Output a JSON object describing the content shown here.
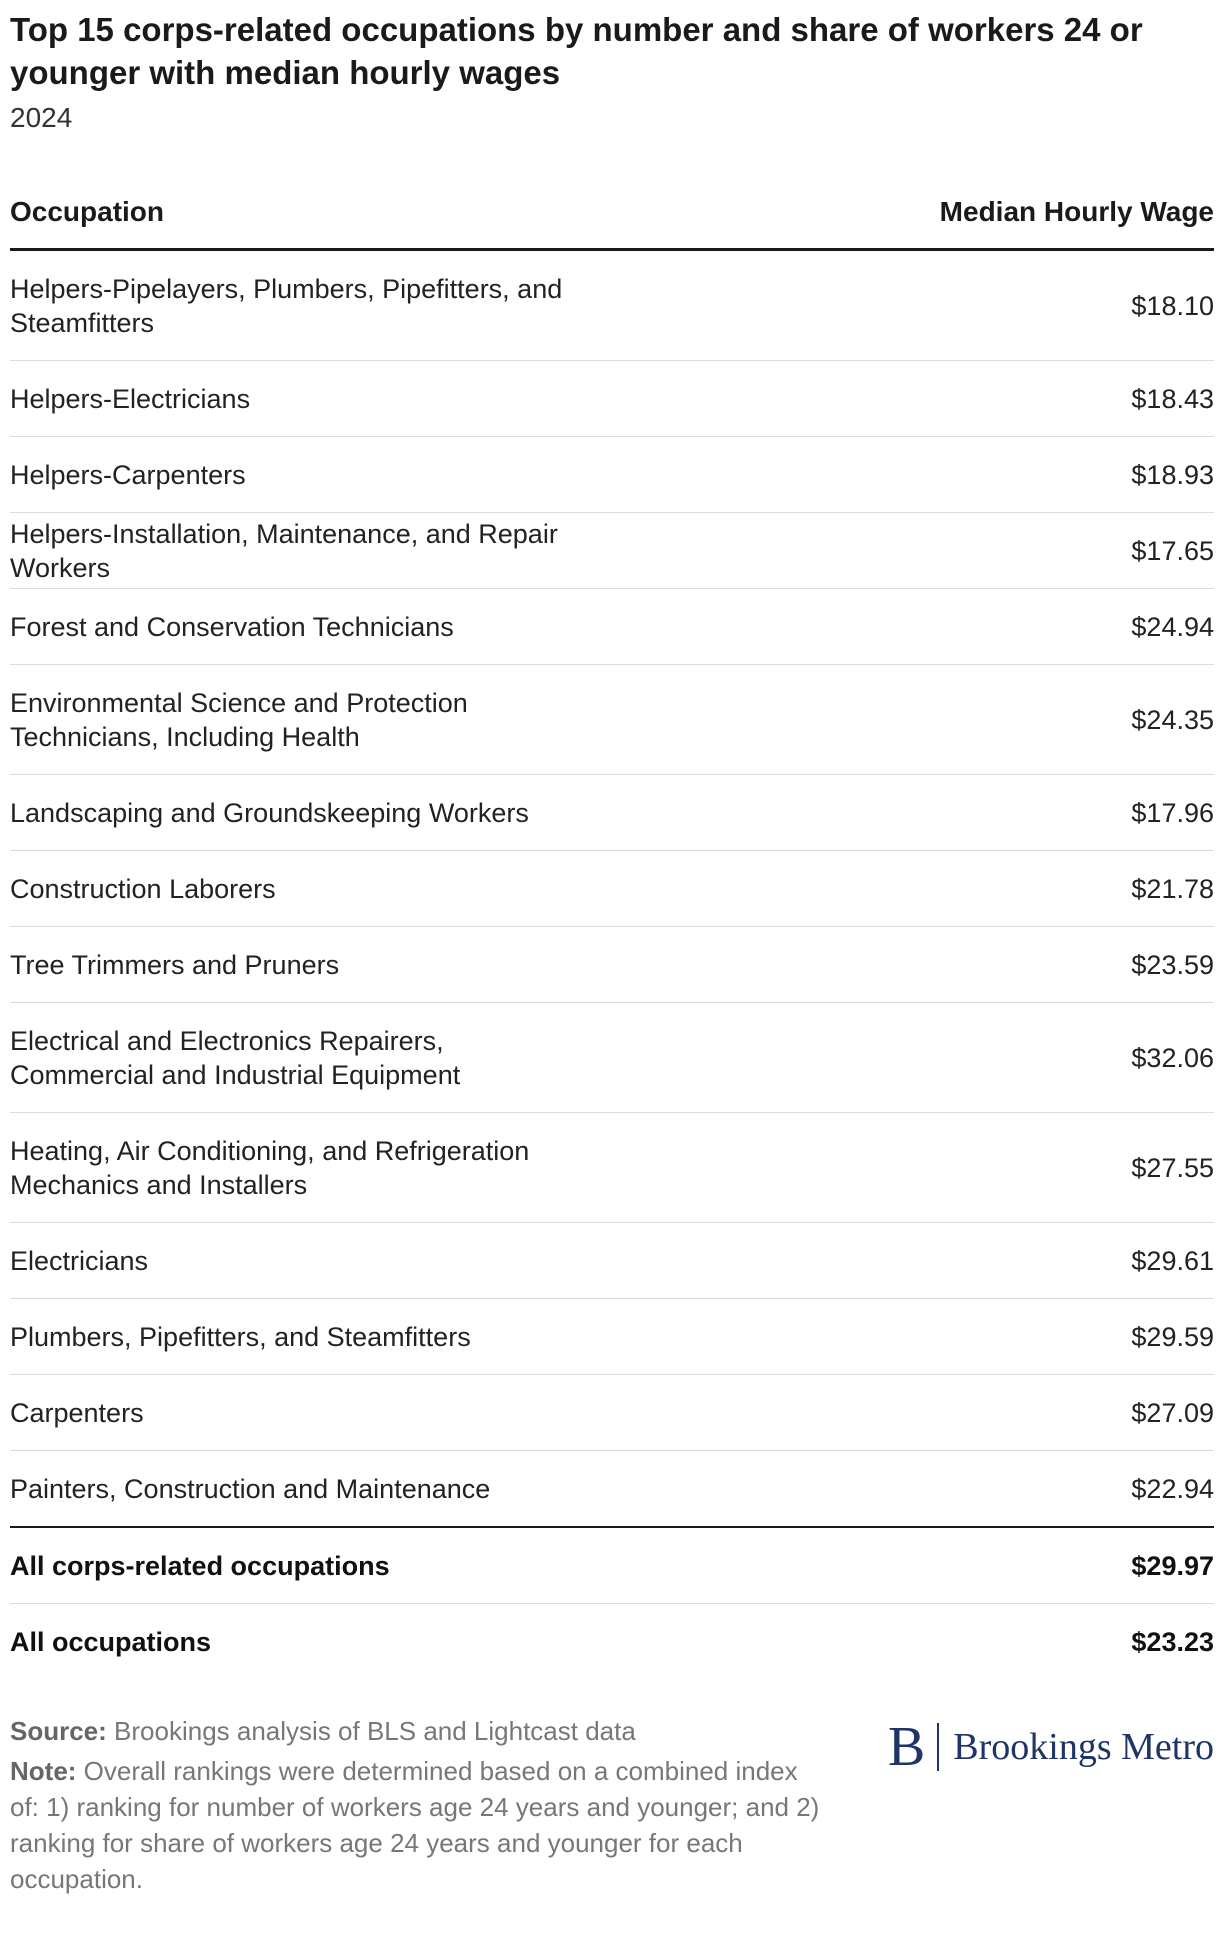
{
  "title": "Top 15 corps-related occupations by number and share of workers 24 or younger with median hourly wages",
  "subtitle": "2024",
  "chart_data": {
    "type": "table",
    "columns": [
      "Occupation",
      "Median Hourly Wage"
    ],
    "rows": [
      {
        "occupation": "Helpers-Pipelayers, Plumbers, Pipefitters, and Steamfitters",
        "wage": "$18.10",
        "value": 18.1
      },
      {
        "occupation": "Helpers-Electricians",
        "wage": "$18.43",
        "value": 18.43
      },
      {
        "occupation": "Helpers-Carpenters",
        "wage": "$18.93",
        "value": 18.93
      },
      {
        "occupation": "Helpers-Installation, Maintenance, and Repair Workers",
        "wage": "$17.65",
        "value": 17.65
      },
      {
        "occupation": "Forest and Conservation Technicians",
        "wage": "$24.94",
        "value": 24.94
      },
      {
        "occupation": "Environmental Science and Protection Technicians, Including Health",
        "wage": "$24.35",
        "value": 24.35
      },
      {
        "occupation": "Landscaping and Groundskeeping Workers",
        "wage": "$17.96",
        "value": 17.96
      },
      {
        "occupation": "Construction Laborers",
        "wage": "$21.78",
        "value": 21.78
      },
      {
        "occupation": "Tree Trimmers and Pruners",
        "wage": "$23.59",
        "value": 23.59
      },
      {
        "occupation": "Electrical and Electronics Repairers, Commercial and Industrial Equipment",
        "wage": "$32.06",
        "value": 32.06
      },
      {
        "occupation": "Heating, Air Conditioning, and Refrigeration Mechanics and Installers",
        "wage": "$27.55",
        "value": 27.55
      },
      {
        "occupation": "Electricians",
        "wage": "$29.61",
        "value": 29.61
      },
      {
        "occupation": "Plumbers, Pipefitters, and Steamfitters",
        "wage": "$29.59",
        "value": 29.59
      },
      {
        "occupation": "Carpenters",
        "wage": "$27.09",
        "value": 27.09
      },
      {
        "occupation": "Painters, Construction and Maintenance",
        "wage": "$22.94",
        "value": 22.94
      }
    ],
    "totals": [
      {
        "occupation": "All corps-related occupations",
        "wage": "$29.97",
        "value": 29.97
      },
      {
        "occupation": "All occupations",
        "wage": "$23.23",
        "value": 23.23
      }
    ]
  },
  "footer": {
    "source_label": "Source:",
    "source_text": "Brookings analysis of BLS and Lightcast data",
    "note_label": "Note:",
    "note_text": "Overall rankings were determined based on a combined index of: 1) ranking for number of workers age 24 years and younger; and 2) ranking for share of workers age 24 years and younger for each occupation."
  },
  "logo": {
    "mark": "B",
    "text": "Brookings Metro",
    "color": "#1f3566"
  },
  "colors": {
    "text": "#1a1a1a",
    "rule": "#1a1a1a",
    "row_divider": "#dcdcdc",
    "footnote": "#777777"
  }
}
